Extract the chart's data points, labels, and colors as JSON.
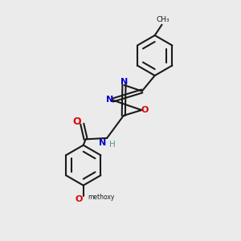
{
  "background_color": "#ebebeb",
  "bond_color": "#1a1a1a",
  "bond_width": 1.5,
  "figsize": [
    3.0,
    3.0
  ],
  "dpi": 100,
  "colors": {
    "O": "#dd0000",
    "N": "#0000cc",
    "H": "#4a9a9a",
    "C": "#1a1a1a"
  }
}
